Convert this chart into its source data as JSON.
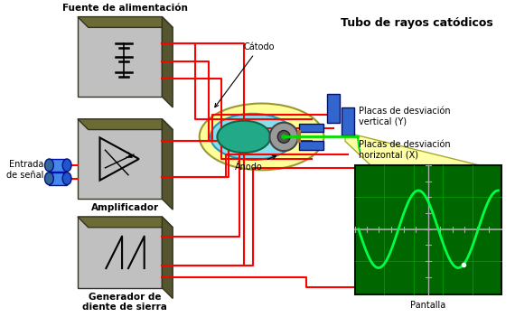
{
  "title": "Tubo de rayos catódicos",
  "bg_color": "#ffffff",
  "labels": {
    "fuente": "Fuente de alimentación",
    "amplificador": "Amplificador",
    "generador": "Generador de\ndiente de sierra",
    "entrada": "Entrada\nde señal",
    "catodo": "Cátodo",
    "anodo": "Ánodo",
    "placas_v": "Placas de desviación\nvertical (Y)",
    "placas_h": "Placas de desviación\nhorizontal (X)",
    "pantalla": "Pantalla"
  },
  "box_olive": "#6b6b35",
  "box_olive_dark": "#555530",
  "box_face": "#b0b0a0",
  "box_inner": "#c0c0c0",
  "red_wire": "#ff0000",
  "blue_connector": "#2255cc",
  "blue_connector_dark": "#001188",
  "screen_bg": "#006600",
  "screen_grid": "#009900",
  "wave_color": "#00ff44",
  "tube_yellow": "#ffff99",
  "tube_yellow_edge": "#999933",
  "cyan_color": "#88ddee",
  "teal_color": "#22aa88",
  "blue_plate": "#3366cc",
  "gray_anode": "#aaaaaa",
  "brown_wire": "#aa7733"
}
